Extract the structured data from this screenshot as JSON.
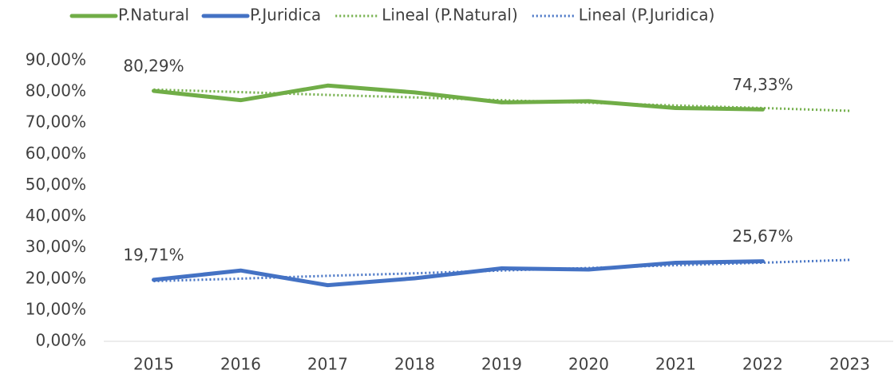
{
  "chart_data": {
    "type": "line",
    "categories": [
      "2015",
      "2016",
      "2017",
      "2018",
      "2019",
      "2020",
      "2021",
      "2022",
      "2023"
    ],
    "series": [
      {
        "name": "P.Natural",
        "color": "#70ad47",
        "style": "solid",
        "values": [
          80.29,
          77.3,
          82.0,
          79.8,
          76.6,
          77.0,
          74.8,
          74.33,
          null
        ],
        "value_labels": [
          "80,29%",
          null,
          null,
          null,
          null,
          null,
          null,
          "74,33%",
          null
        ]
      },
      {
        "name": "P.Juridica",
        "color": "#4472c4",
        "style": "solid",
        "values": [
          19.71,
          22.7,
          18.0,
          20.2,
          23.4,
          23.0,
          25.2,
          25.67,
          null
        ],
        "value_labels": [
          "19,71%",
          null,
          null,
          null,
          null,
          null,
          null,
          "25,67%",
          null
        ]
      },
      {
        "name": "Lineal (P.Natural)",
        "color": "#70ad47",
        "style": "dotted",
        "values": [
          80.7,
          79.9,
          79.0,
          78.2,
          77.3,
          76.5,
          75.6,
          74.8,
          73.9
        ]
      },
      {
        "name": "Lineal (P.Juridica)",
        "color": "#4472c4",
        "style": "dotted",
        "values": [
          19.3,
          20.1,
          21.0,
          21.8,
          22.7,
          23.5,
          24.4,
          25.2,
          26.1
        ]
      }
    ],
    "ylim": [
      0,
      90
    ],
    "yticks": [
      {
        "value": 0,
        "label": "0,00%"
      },
      {
        "value": 10,
        "label": "10,00%"
      },
      {
        "value": 20,
        "label": "20,00%"
      },
      {
        "value": 30,
        "label": "30,00%"
      },
      {
        "value": 40,
        "label": "40,00%"
      },
      {
        "value": 50,
        "label": "50,00%"
      },
      {
        "value": 60,
        "label": "60,00%"
      },
      {
        "value": 70,
        "label": "70,00%"
      },
      {
        "value": 80,
        "label": "80,00%"
      },
      {
        "value": 90,
        "label": "90,00%"
      }
    ],
    "legend": "top"
  }
}
